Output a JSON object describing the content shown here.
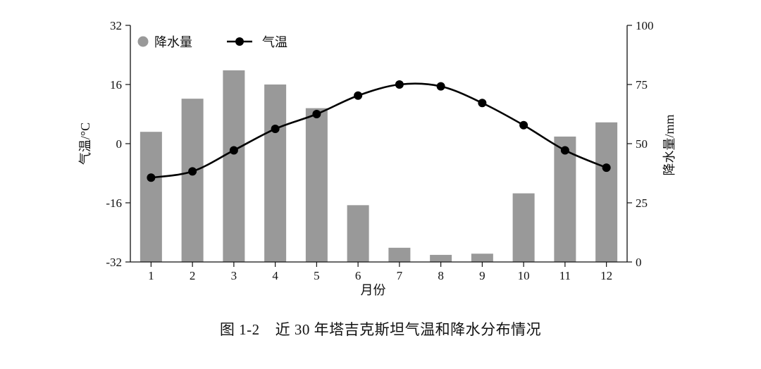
{
  "caption": {
    "number": "图 1-2",
    "text": "近 30 年塔吉克斯坦气温和降水分布情况"
  },
  "chart_data": {
    "type": "bar+line",
    "categories": [
      "1",
      "2",
      "3",
      "4",
      "5",
      "6",
      "7",
      "8",
      "9",
      "10",
      "11",
      "12"
    ],
    "xlabel": "月份",
    "y_left": {
      "label": "气温/°C",
      "range": [
        -32,
        32
      ],
      "ticks": [
        "-32",
        "-16",
        "0",
        "16",
        "32"
      ]
    },
    "y_right": {
      "label": "降水量/mm",
      "range": [
        0,
        100
      ],
      "ticks": [
        "0",
        "25",
        "50",
        "75",
        "100"
      ]
    },
    "series": [
      {
        "name": "降水量",
        "type": "bar",
        "axis": "right",
        "color": "#999999",
        "values": [
          55,
          69,
          81,
          75,
          65,
          24,
          6,
          3,
          3.5,
          29,
          53,
          59
        ]
      },
      {
        "name": "气温",
        "type": "line",
        "axis": "left",
        "color": "#000000",
        "marker": "circle",
        "values": [
          -9.2,
          -7.5,
          -1.8,
          4.0,
          8.0,
          13.0,
          16.0,
          15.5,
          11.0,
          5.0,
          -1.8,
          -6.5
        ]
      }
    ],
    "legend": {
      "position": "top-left"
    }
  }
}
